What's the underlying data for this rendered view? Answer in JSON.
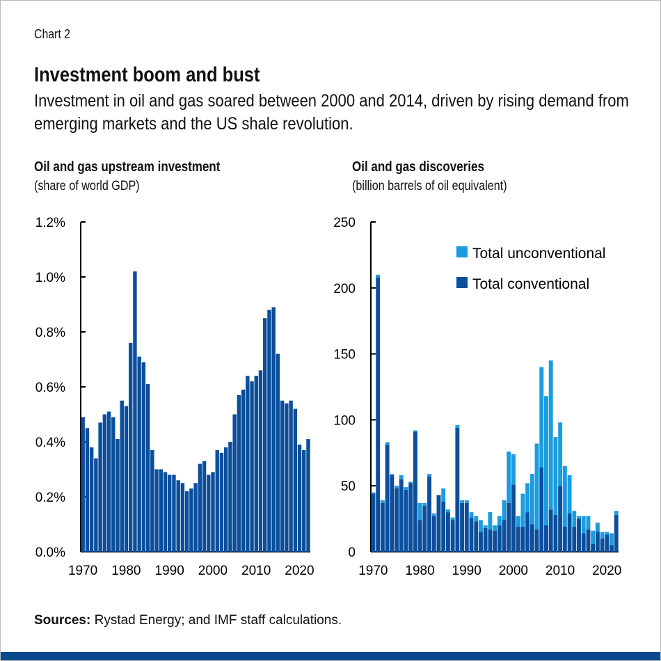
{
  "label": "Chart 2",
  "title": "Investment boom and bust",
  "subtitle": "Investment in oil and gas soared between 2000 and 2014, driven by rising demand from emerging markets and the US shale revolution.",
  "source_bold": "Sources:",
  "source_text": " Rystad Energy; and IMF staff calculations.",
  "colors": {
    "conventional": "#0b4f9c",
    "unconventional": "#1b9be0",
    "stripe": "#0c4b8e"
  },
  "chart_data": [
    {
      "type": "bar",
      "title": "Oil and gas upstream investment",
      "subtitle": "(share of world GDP)",
      "x_start": 1970,
      "x_end": 2022,
      "xticks": [
        "1970",
        "1980",
        "1990",
        "2000",
        "2010",
        "2020"
      ],
      "yticks": [
        "0.0%",
        "0.2%",
        "0.4%",
        "0.6%",
        "0.8%",
        "1.0%",
        "1.2%"
      ],
      "ylim": [
        0,
        1.2
      ],
      "values": [
        0.49,
        0.45,
        0.38,
        0.34,
        0.47,
        0.5,
        0.51,
        0.49,
        0.41,
        0.55,
        0.53,
        0.76,
        1.02,
        0.71,
        0.69,
        0.61,
        0.37,
        0.3,
        0.3,
        0.29,
        0.28,
        0.28,
        0.26,
        0.25,
        0.22,
        0.23,
        0.25,
        0.32,
        0.33,
        0.28,
        0.29,
        0.37,
        0.36,
        0.38,
        0.4,
        0.5,
        0.57,
        0.59,
        0.64,
        0.62,
        0.64,
        0.66,
        0.85,
        0.88,
        0.89,
        0.72,
        0.55,
        0.54,
        0.55,
        0.52,
        0.39,
        0.37,
        0.41
      ]
    },
    {
      "type": "bar",
      "stacked": true,
      "title": "Oil and gas discoveries",
      "subtitle": "(billion barrels of oil equivalent)",
      "x_start": 1970,
      "x_end": 2022,
      "xticks": [
        "1970",
        "1980",
        "1990",
        "2000",
        "2010",
        "2020"
      ],
      "yticks": [
        "0",
        "50",
        "100",
        "150",
        "200",
        "250"
      ],
      "ylim": [
        0,
        250
      ],
      "legend_position": "top-right",
      "series": [
        {
          "name": "Total conventional",
          "values": [
            44,
            208,
            37,
            81,
            58,
            48,
            55,
            47,
            52,
            91,
            24,
            35,
            57,
            27,
            43,
            38,
            30,
            24,
            94,
            37,
            37,
            26,
            23,
            15,
            18,
            17,
            16,
            20,
            24,
            37,
            51,
            19,
            19,
            30,
            21,
            17,
            64,
            20,
            32,
            28,
            50,
            19,
            29,
            19,
            25,
            14,
            17,
            6,
            15,
            10,
            13,
            5,
            28
          ]
        },
        {
          "name": "Total unconventional",
          "values": [
            1,
            2,
            2,
            2,
            1,
            2,
            3,
            2,
            1,
            1,
            13,
            2,
            2,
            2,
            0,
            10,
            2,
            2,
            2,
            2,
            2,
            4,
            4,
            9,
            2,
            13,
            4,
            7,
            15,
            39,
            23,
            8,
            25,
            22,
            38,
            65,
            76,
            98,
            113,
            59,
            48,
            46,
            29,
            12,
            2,
            13,
            10,
            10,
            7,
            5,
            2,
            9,
            3
          ]
        }
      ]
    }
  ]
}
